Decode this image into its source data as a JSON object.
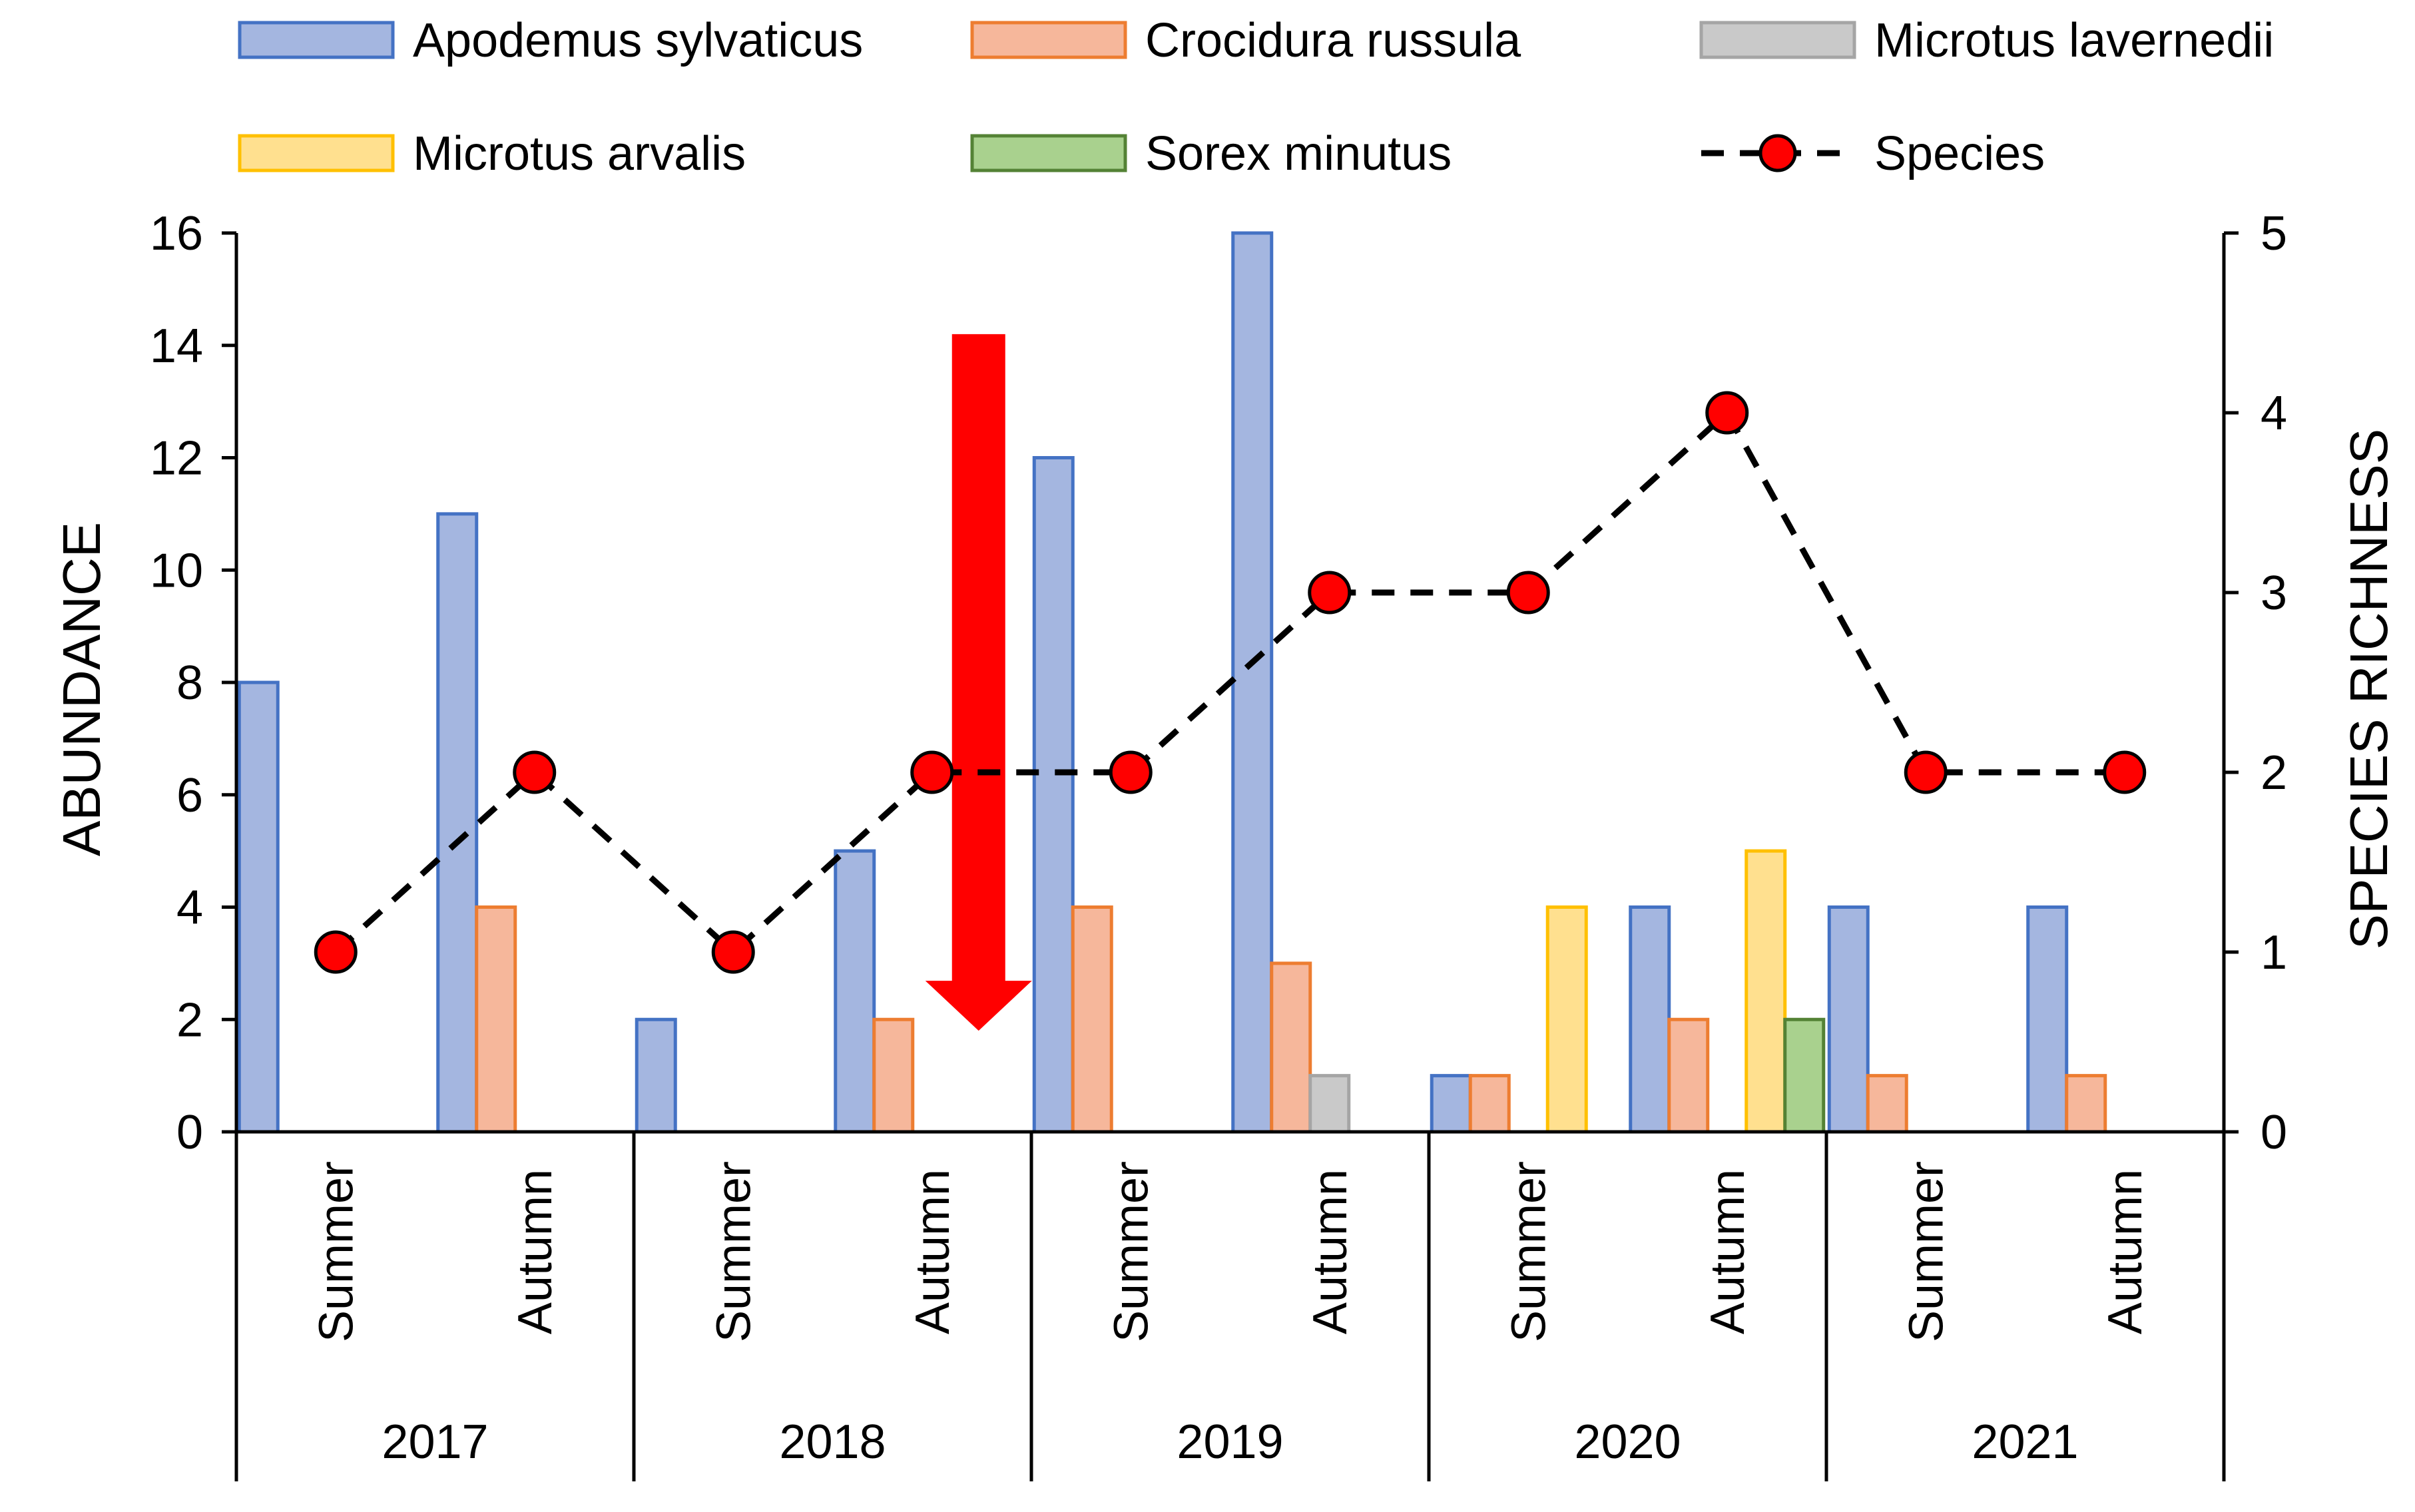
{
  "chart_data": {
    "type": "bar",
    "title": "",
    "groups": [
      {
        "year": "2017",
        "seasons": [
          "Summer",
          "Autumn"
        ]
      },
      {
        "year": "2018",
        "seasons": [
          "Summer",
          "Autumn"
        ]
      },
      {
        "year": "2019",
        "seasons": [
          "Summer",
          "Autumn"
        ]
      },
      {
        "year": "2020",
        "seasons": [
          "Summer",
          "Autumn"
        ]
      },
      {
        "year": "2021",
        "seasons": [
          "Summer",
          "Autumn"
        ]
      }
    ],
    "series": [
      {
        "name": "Apodemus sylvaticus",
        "fill": "#a4b6e0",
        "stroke": "#4472c4",
        "values": [
          8,
          11,
          2,
          5,
          12,
          16,
          1,
          4,
          4,
          4
        ]
      },
      {
        "name": "Crocidura russula",
        "fill": "#f6b79b",
        "stroke": "#ed7d31",
        "values": [
          0,
          4,
          0,
          2,
          4,
          3,
          1,
          2,
          1,
          1
        ]
      },
      {
        "name": "Microtus lavernedii",
        "fill": "#c9c9c9",
        "stroke": "#a5a5a5",
        "values": [
          0,
          0,
          0,
          0,
          0,
          1,
          0,
          0,
          0,
          0
        ]
      },
      {
        "name": "Microtus arvalis",
        "fill": "#ffe08f",
        "stroke": "#ffc000",
        "values": [
          0,
          0,
          0,
          0,
          0,
          0,
          4,
          5,
          0,
          0
        ]
      },
      {
        "name": "Sorex minutus",
        "fill": "#a9d18e",
        "stroke": "#548235",
        "values": [
          0,
          0,
          0,
          0,
          0,
          0,
          0,
          2,
          0,
          0
        ]
      }
    ],
    "line_series": {
      "name": "Species",
      "color": "#ff0000",
      "axis": "right",
      "values": [
        1,
        2,
        1,
        2,
        2,
        3,
        3,
        4,
        2,
        2
      ]
    },
    "ylabel": "ABUNDANCE",
    "ylim": [
      0,
      16
    ],
    "yticks": [
      "0",
      "2",
      "4",
      "6",
      "8",
      "10",
      "12",
      "14",
      "16"
    ],
    "y2label": "SPECIES RICHNESS",
    "y2lim": [
      0,
      5
    ],
    "y2ticks": [
      "0",
      "1",
      "2",
      "3",
      "4",
      "5"
    ],
    "annotation": {
      "type": "arrow-down",
      "color": "#ff0000",
      "category_index": 3,
      "from_value": 14.2,
      "to_value": 1.8
    },
    "legend_position": "top"
  }
}
